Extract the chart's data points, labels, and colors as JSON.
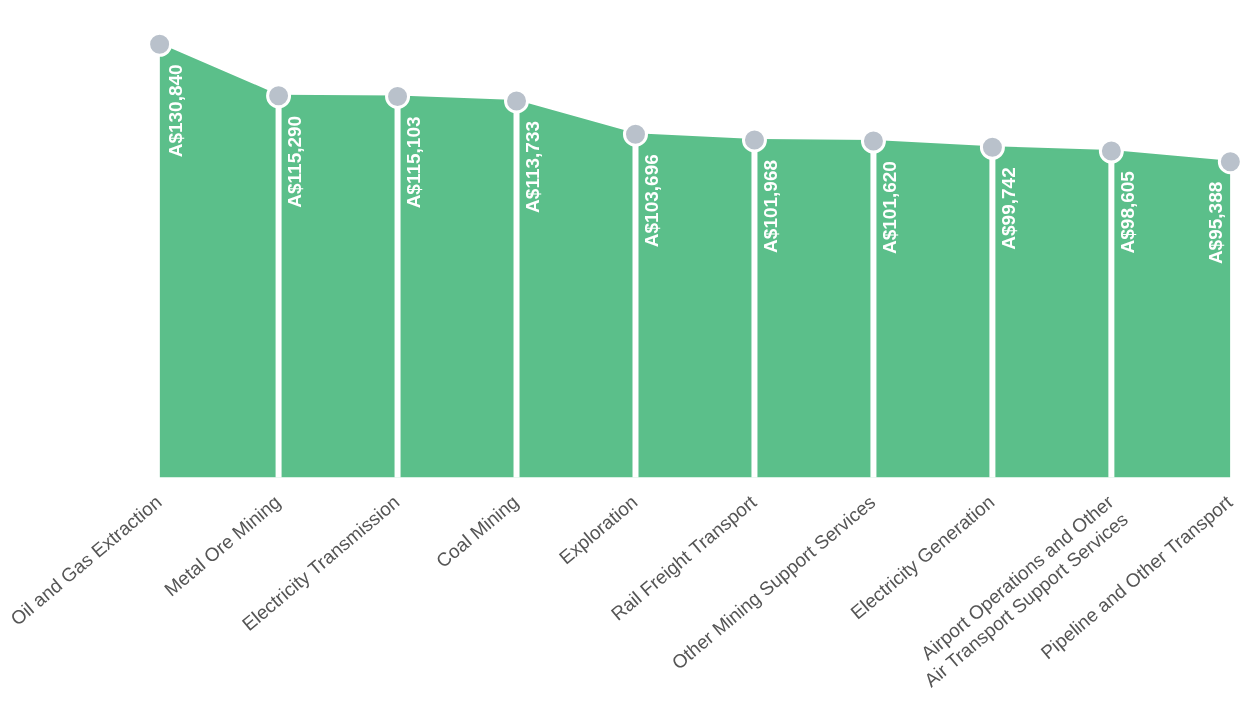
{
  "chart_data": {
    "type": "area",
    "categories": [
      "Oil and Gas Extraction",
      "Metal Ore Mining",
      "Electricity Transmission",
      "Coal Mining",
      "Exploration",
      "Rail Freight Transport",
      "Other Mining Support Services",
      "Electricity Generation",
      "Airport Operations and Other Air Transport Support Services",
      "Pipeline and Other Transport"
    ],
    "series": [
      {
        "color": "#5bbf8a",
        "values": [
          130840,
          115290,
          115103,
          113733,
          103696,
          101968,
          101620,
          99742,
          98605,
          95388
        ],
        "value_labels": [
          "A$130,840",
          "A$115,290",
          "A$115,103",
          "A$113,733",
          "A$103,696",
          "A$101,968",
          "A$101,620",
          "A$99,742",
          "A$98,605",
          "A$95,388"
        ]
      },
      {
        "type": "scatter",
        "color": "#b9c1cb",
        "x": [
          "Oil and Gas Extraction",
          "Metal Ore Mining",
          "Electricity Transmission",
          "Coal Mining",
          "Exploration",
          "Rail Freight Transport",
          "Other Mining Support Services",
          "Electricity Generation",
          "Airport Operations and Other Air Transport Support Services",
          "Pipeline and Other Transport"
        ],
        "values": [
          130840,
          115290,
          115103,
          113733,
          103696,
          101968,
          101620,
          99742,
          98605,
          95388
        ],
        "marker": "circle"
      }
    ],
    "grid": "x",
    "legend": false
  }
}
